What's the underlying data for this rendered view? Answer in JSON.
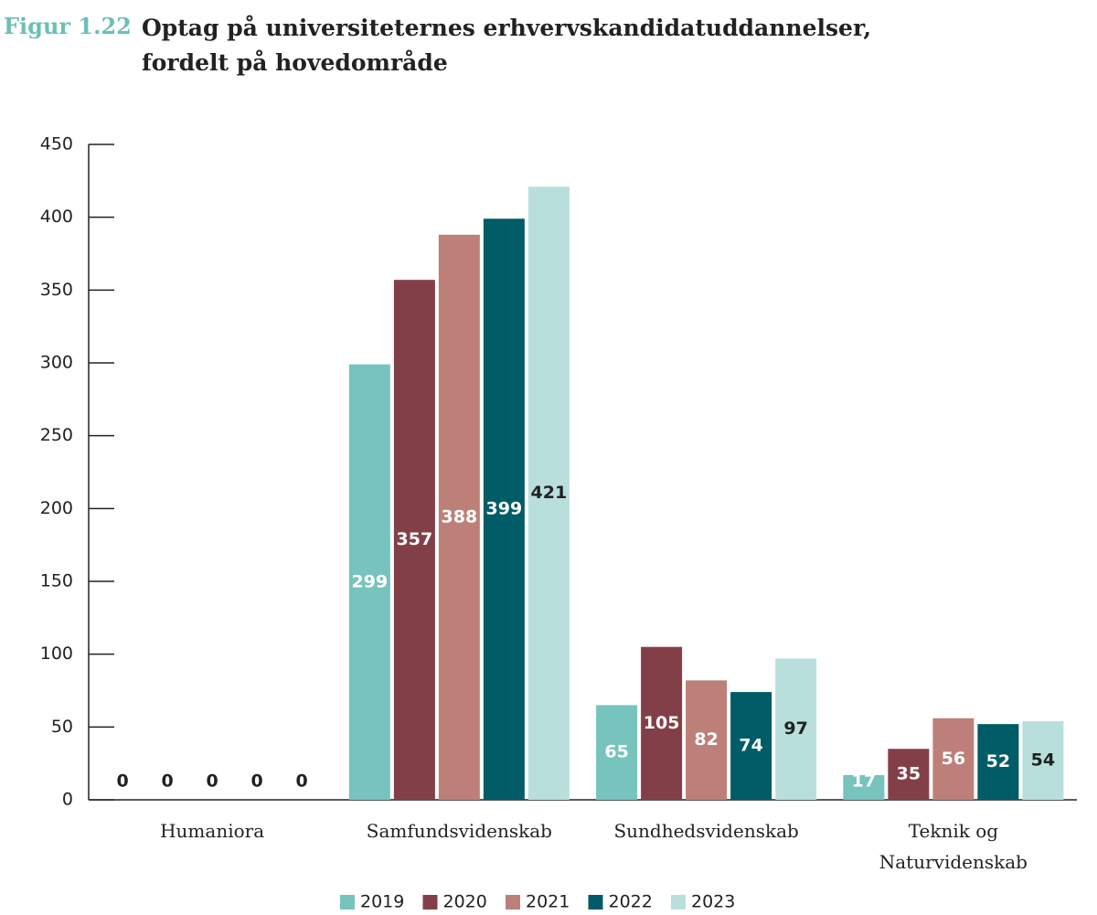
{
  "chart_data": {
    "type": "bar",
    "figure_label": "Figur 1.22",
    "title": "Optag på universiteternes erhvervskandidatuddannelser, fordelt på hovedområde",
    "categories": [
      "Humaniora",
      "Samfundsvidenskab",
      "Sundhedsvidenskab",
      "Teknik og\nNaturvidenskab"
    ],
    "series": [
      {
        "name": "2019",
        "color": "#76c4bd",
        "label_color": "#ffffff",
        "values": [
          0,
          299,
          65,
          17
        ]
      },
      {
        "name": "2020",
        "color": "#833f47",
        "label_color": "#ffffff",
        "values": [
          0,
          357,
          105,
          35
        ]
      },
      {
        "name": "2021",
        "color": "#bd8079",
        "label_color": "#ffffff",
        "values": [
          0,
          388,
          82,
          56
        ]
      },
      {
        "name": "2022",
        "color": "#005c66",
        "label_color": "#ffffff",
        "values": [
          0,
          399,
          74,
          52
        ]
      },
      {
        "name": "2023",
        "color": "#b9dfdd",
        "label_color": "#222222",
        "values": [
          0,
          421,
          97,
          54
        ]
      }
    ],
    "ylim": [
      0,
      450
    ],
    "yticks": [
      0,
      50,
      100,
      150,
      200,
      250,
      300,
      350,
      400,
      450
    ],
    "grid": false,
    "legend": "bottom"
  }
}
